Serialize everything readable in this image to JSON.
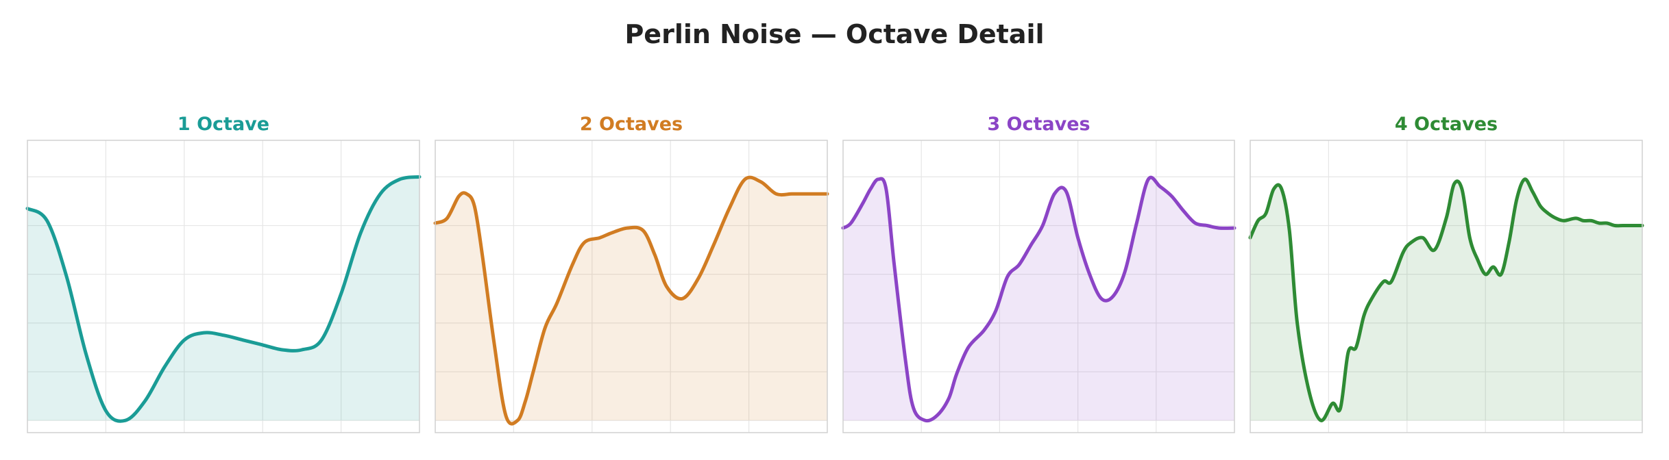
{
  "title": "Perlin Noise — Octave Detail",
  "chart_data": [
    {
      "type": "area",
      "title": "1 Octave",
      "color": "#1a9c96",
      "xlim": [
        0,
        1
      ],
      "ylim": [
        -0.05,
        1.15
      ],
      "grid": true,
      "x": [
        0.0,
        0.05,
        0.1,
        0.15,
        0.2,
        0.25,
        0.3,
        0.35,
        0.4,
        0.45,
        0.5,
        0.55,
        0.6,
        0.65,
        0.7,
        0.75,
        0.8,
        0.85,
        0.9,
        0.95,
        1.0
      ],
      "y": [
        0.87,
        0.82,
        0.59,
        0.27,
        0.04,
        0.0,
        0.08,
        0.22,
        0.33,
        0.36,
        0.35,
        0.33,
        0.31,
        0.29,
        0.29,
        0.33,
        0.52,
        0.77,
        0.93,
        0.99,
        1.0
      ]
    },
    {
      "type": "area",
      "title": "2 Octaves",
      "color": "#d17c22",
      "xlim": [
        0,
        1
      ],
      "ylim": [
        -0.05,
        1.15
      ],
      "grid": true,
      "x": [
        0.0,
        0.03,
        0.06,
        0.08,
        0.1,
        0.12,
        0.15,
        0.18,
        0.21,
        0.23,
        0.25,
        0.28,
        0.31,
        0.35,
        0.38,
        0.42,
        0.45,
        0.49,
        0.53,
        0.56,
        0.59,
        0.63,
        0.67,
        0.71,
        0.75,
        0.79,
        0.83,
        0.87,
        0.91,
        0.95,
        1.0
      ],
      "y": [
        0.81,
        0.83,
        0.92,
        0.93,
        0.88,
        0.68,
        0.32,
        0.02,
        0.0,
        0.08,
        0.2,
        0.38,
        0.48,
        0.64,
        0.73,
        0.75,
        0.77,
        0.79,
        0.78,
        0.68,
        0.55,
        0.5,
        0.58,
        0.72,
        0.87,
        0.99,
        0.98,
        0.93,
        0.93,
        0.93,
        0.93
      ]
    },
    {
      "type": "area",
      "title": "3 Octaves",
      "color": "#8b44c6",
      "xlim": [
        0,
        1
      ],
      "ylim": [
        -0.05,
        1.15
      ],
      "grid": true,
      "x": [
        0.0,
        0.02,
        0.05,
        0.07,
        0.09,
        0.11,
        0.13,
        0.16,
        0.18,
        0.21,
        0.24,
        0.27,
        0.29,
        0.32,
        0.36,
        0.39,
        0.42,
        0.45,
        0.48,
        0.51,
        0.54,
        0.57,
        0.6,
        0.63,
        0.66,
        0.69,
        0.72,
        0.75,
        0.78,
        0.81,
        0.84,
        0.87,
        0.9,
        0.93,
        0.96,
        1.0
      ],
      "y": [
        0.79,
        0.81,
        0.89,
        0.95,
        0.99,
        0.95,
        0.65,
        0.24,
        0.05,
        0.0,
        0.02,
        0.09,
        0.19,
        0.3,
        0.37,
        0.45,
        0.59,
        0.64,
        0.72,
        0.8,
        0.93,
        0.94,
        0.75,
        0.6,
        0.5,
        0.51,
        0.61,
        0.81,
        0.99,
        0.96,
        0.92,
        0.86,
        0.81,
        0.8,
        0.79,
        0.79
      ]
    },
    {
      "type": "area",
      "title": "4 Octaves",
      "color": "#2e8b34",
      "xlim": [
        0,
        1
      ],
      "ylim": [
        -0.05,
        1.15
      ],
      "grid": true,
      "x": [
        0.0,
        0.02,
        0.04,
        0.06,
        0.08,
        0.1,
        0.12,
        0.15,
        0.18,
        0.21,
        0.23,
        0.25,
        0.27,
        0.29,
        0.31,
        0.34,
        0.36,
        0.39,
        0.41,
        0.44,
        0.47,
        0.5,
        0.52,
        0.54,
        0.56,
        0.58,
        0.6,
        0.62,
        0.64,
        0.66,
        0.68,
        0.7,
        0.72,
        0.74,
        0.76,
        0.78,
        0.8,
        0.83,
        0.85,
        0.87,
        0.89,
        0.91,
        0.93,
        0.95,
        0.97,
        1.0
      ],
      "y": [
        0.75,
        0.82,
        0.85,
        0.95,
        0.95,
        0.78,
        0.4,
        0.12,
        0.0,
        0.07,
        0.05,
        0.28,
        0.3,
        0.43,
        0.5,
        0.57,
        0.57,
        0.69,
        0.73,
        0.75,
        0.7,
        0.83,
        0.97,
        0.95,
        0.75,
        0.66,
        0.6,
        0.63,
        0.6,
        0.73,
        0.91,
        0.99,
        0.94,
        0.88,
        0.85,
        0.83,
        0.82,
        0.83,
        0.82,
        0.82,
        0.81,
        0.81,
        0.8,
        0.8,
        0.8,
        0.8
      ]
    }
  ]
}
